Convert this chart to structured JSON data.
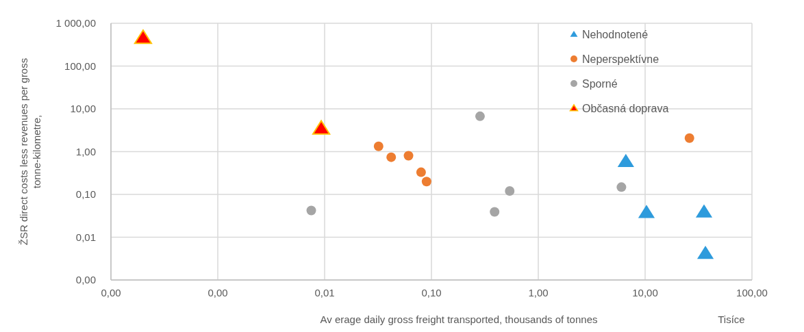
{
  "chart_data": {
    "type": "scatter",
    "xlabel": "Av erage daily gross freight transported, thousands of tonnes",
    "ylabel": "ŽSR direct costs less revenues per gross tonne-kilometre,",
    "annotations": [
      "Tisíce"
    ],
    "log": "xy",
    "grid": true,
    "legend": "top right",
    "xlim": [
      0.0001,
      100
    ],
    "xticks": [
      {
        "value": 0.0001,
        "label": "0,00"
      },
      {
        "value": 0.001,
        "label": "0,00"
      },
      {
        "value": 0.01,
        "label": "0,01"
      },
      {
        "value": 0.1,
        "label": "0,10"
      },
      {
        "value": 1,
        "label": "1,00"
      },
      {
        "value": 10,
        "label": "10,00"
      },
      {
        "value": 100,
        "label": "100,00"
      }
    ],
    "ylim": [
      0.001,
      1000
    ],
    "yticks": [
      {
        "value": 0.001,
        "label": "0,00"
      },
      {
        "value": 0.01,
        "label": "0,01"
      },
      {
        "value": 0.1,
        "label": "0,10"
      },
      {
        "value": 1,
        "label": "1,00"
      },
      {
        "value": 10,
        "label": "10,00"
      },
      {
        "value": 100,
        "label": "100,00"
      },
      {
        "value": 1000,
        "label": "1 000,00"
      }
    ],
    "series": [
      {
        "name": "Nehodnotené",
        "color": "#2e9bdc",
        "marker": "triangle",
        "x": [
          6.6,
          10.3,
          35.6,
          36.7
        ],
        "values": [
          0.59,
          0.038,
          0.039,
          0.0042
        ]
      },
      {
        "name": "Neperspektívne",
        "color": "#ed7d31",
        "marker": "circle",
        "x": [
          0.032,
          0.042,
          0.061,
          0.08,
          0.09,
          26
        ],
        "values": [
          1.33,
          0.74,
          0.8,
          0.33,
          0.2,
          2.07
        ]
      },
      {
        "name": "Sporné",
        "color": "#a5a5a5",
        "marker": "circle",
        "x": [
          0.0075,
          0.285,
          0.54,
          0.39,
          6.0
        ],
        "values": [
          0.042,
          6.7,
          0.12,
          0.039,
          0.148
        ]
      },
      {
        "name": "Občasná doprava",
        "color": "#ff0000",
        "marker": "triangle",
        "x": [
          0.0002,
          0.0093
        ],
        "values": [
          460,
          3.5
        ]
      }
    ]
  }
}
